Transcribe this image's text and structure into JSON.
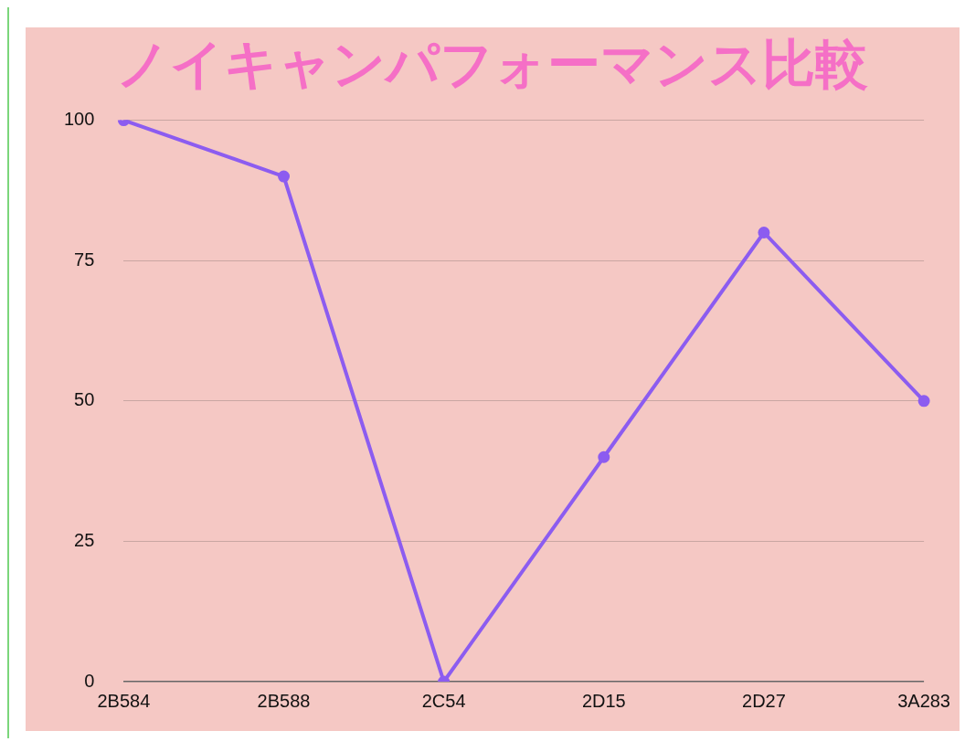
{
  "chart_data": {
    "type": "line",
    "title": "ノイキャンパフォーマンス比較",
    "categories": [
      "2B584",
      "2B588",
      "2C54",
      "2D15",
      "2D27",
      "3A283"
    ],
    "series": [
      {
        "color": "#8c5cf0",
        "values": [
          100,
          90,
          0,
          40,
          80,
          50
        ]
      }
    ],
    "ylim": [
      0,
      100
    ],
    "yticks": [
      0,
      25,
      50,
      75,
      100
    ],
    "grid": "y",
    "legend": false,
    "marker": "circle",
    "line_style": "solid"
  }
}
